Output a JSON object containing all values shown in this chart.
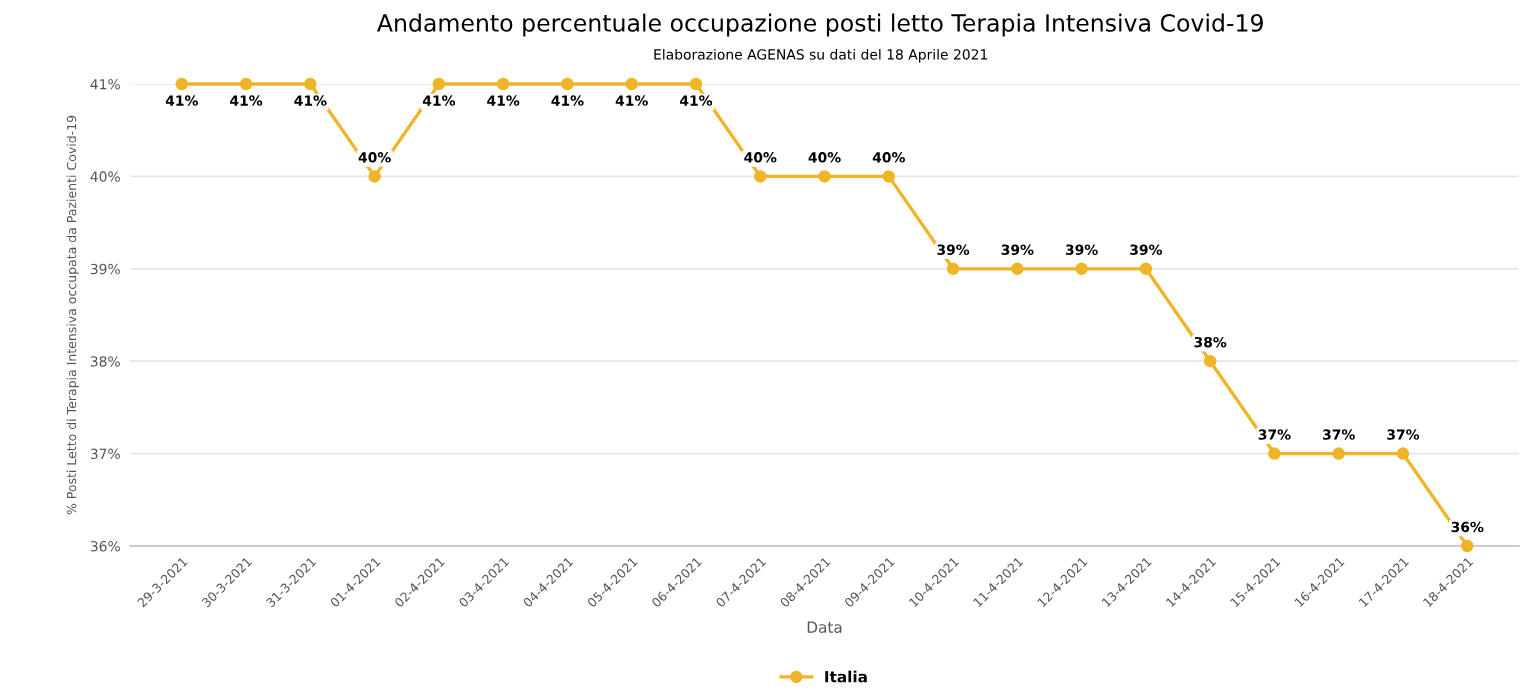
{
  "chart_data": {
    "type": "line",
    "title": "Andamento percentuale occupazione posti letto Terapia Intensiva Covid-19",
    "subtitle": "Elaborazione AGENAS su dati del 18 Aprile 2021",
    "xlabel": "Data",
    "ylabel": "% Posti Letto di Terapia Intensiva occupata da Pazienti Covid-19",
    "categories": [
      "29-3-2021",
      "30-3-2021",
      "31-3-2021",
      "01-4-2021",
      "02-4-2021",
      "03-4-2021",
      "04-4-2021",
      "05-4-2021",
      "06-4-2021",
      "07-4-2021",
      "08-4-2021",
      "09-4-2021",
      "10-4-2021",
      "11-4-2021",
      "12-4-2021",
      "13-4-2021",
      "14-4-2021",
      "15-4-2021",
      "16-4-2021",
      "17-4-2021",
      "18-4-2021"
    ],
    "series": [
      {
        "name": "Italia",
        "color": "#f0b429",
        "values": [
          41,
          41,
          41,
          40,
          41,
          41,
          41,
          41,
          41,
          40,
          40,
          40,
          39,
          39,
          39,
          39,
          38,
          37,
          37,
          37,
          36
        ],
        "value_labels": [
          "41%",
          "41%",
          "41%",
          "40%",
          "41%",
          "41%",
          "41%",
          "41%",
          "41%",
          "40%",
          "40%",
          "40%",
          "39%",
          "39%",
          "39%",
          "39%",
          "38%",
          "37%",
          "37%",
          "37%",
          "36%"
        ]
      }
    ],
    "ylim": [
      36,
      41
    ],
    "yticks": [
      {
        "value": 36,
        "label": "36%"
      },
      {
        "value": 37,
        "label": "37%"
      },
      {
        "value": 38,
        "label": "38%"
      },
      {
        "value": 39,
        "label": "39%"
      },
      {
        "value": 40,
        "label": "40%"
      },
      {
        "value": 41,
        "label": "41%"
      }
    ],
    "grid": "y",
    "legend": "bottom",
    "marker": "circle",
    "line_style": "solid"
  }
}
